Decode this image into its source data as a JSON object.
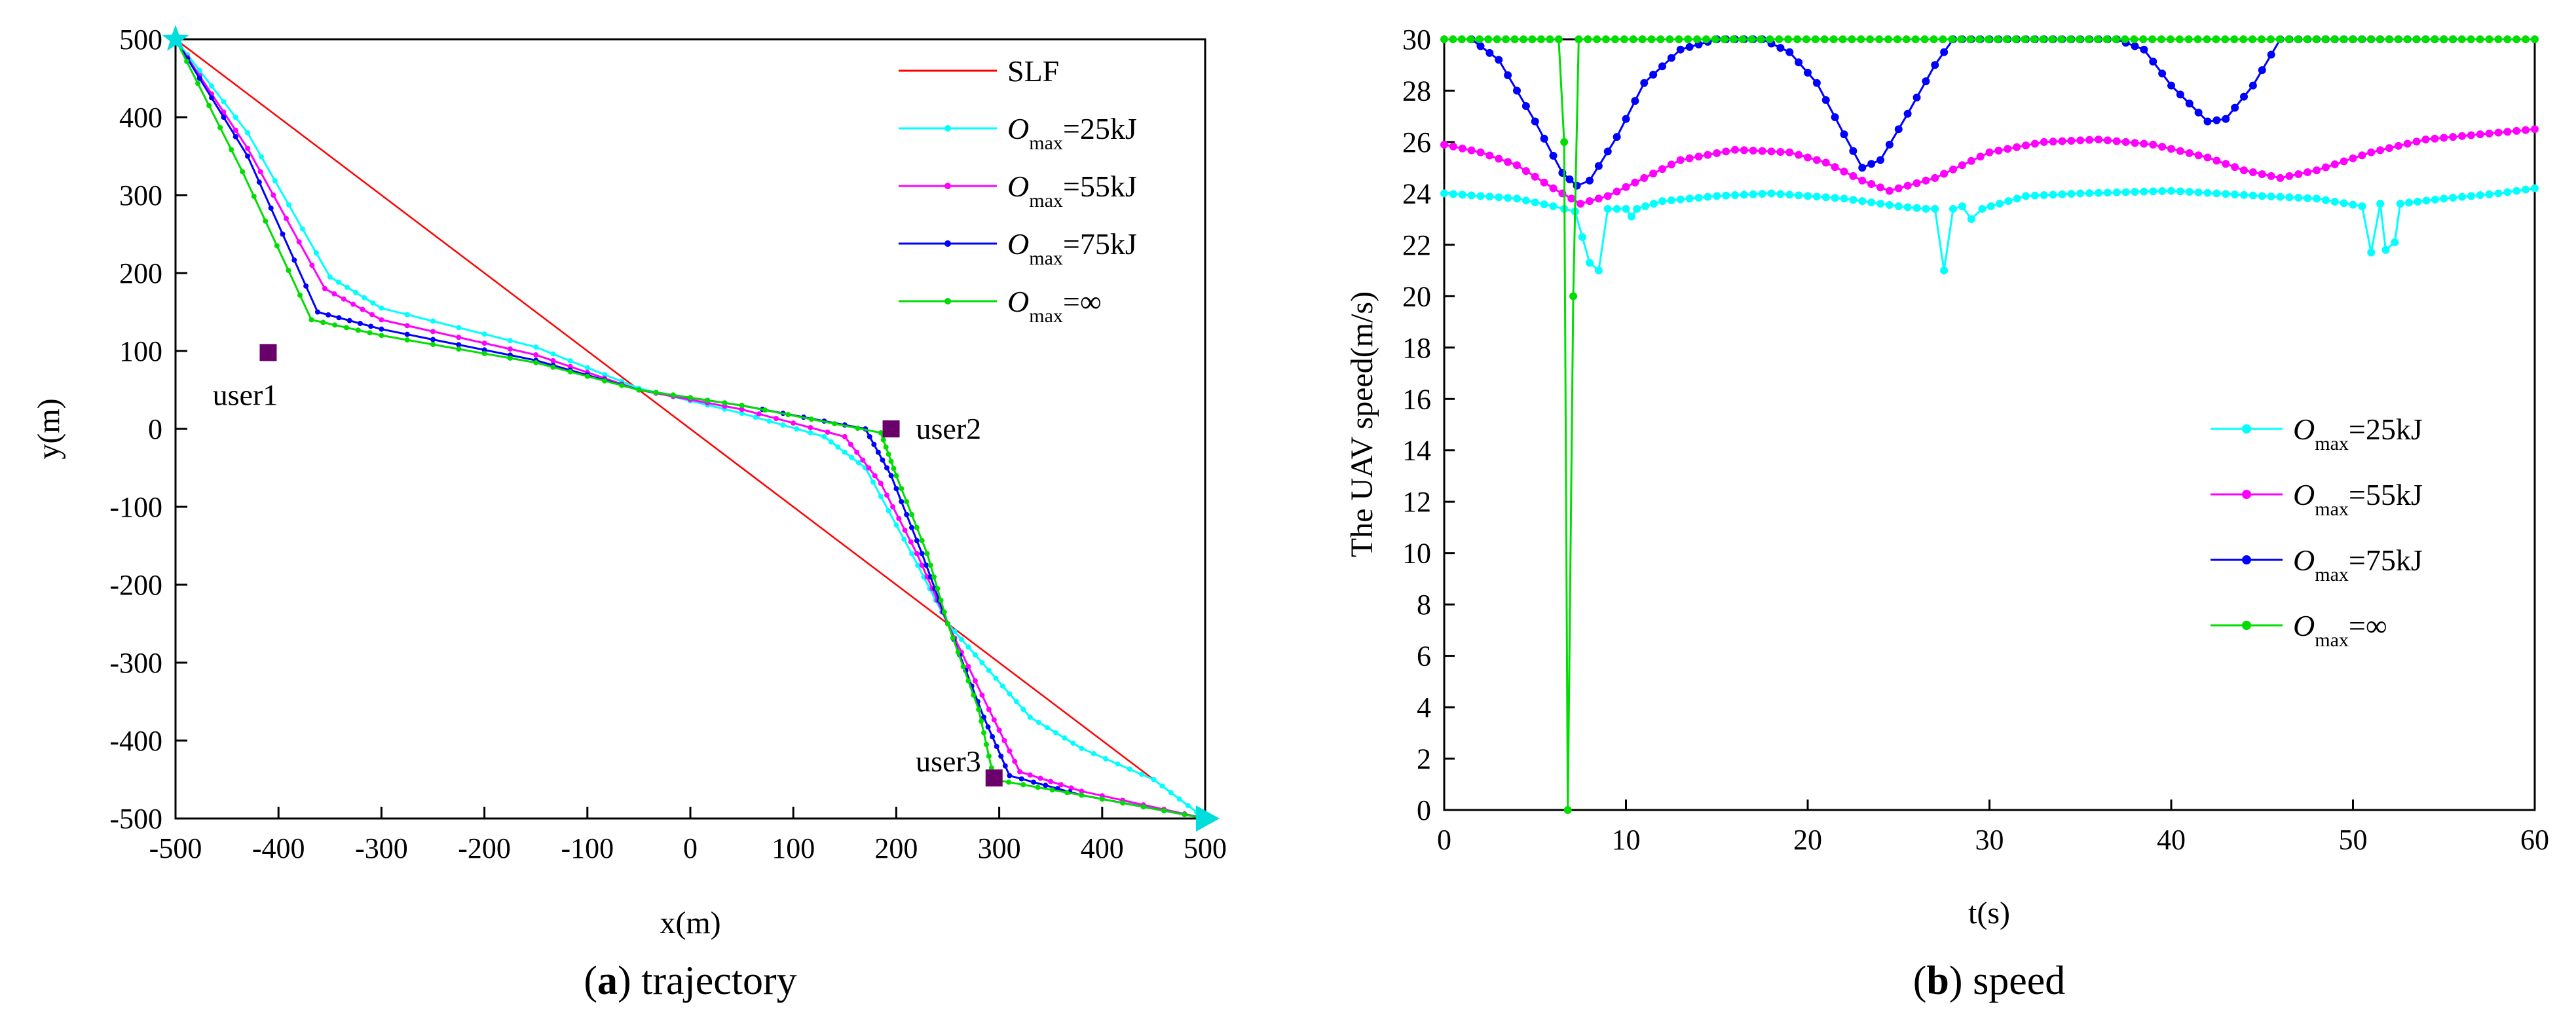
{
  "chart_data": [
    {
      "type": "line",
      "caption_letter": "a",
      "caption_text": "trajectory",
      "xlabel": "x(m)",
      "ylabel": "y(m)",
      "xlim": [
        -500,
        500
      ],
      "ylim": [
        -500,
        500
      ],
      "xticks": [
        -500,
        -400,
        -300,
        -200,
        -100,
        0,
        100,
        200,
        300,
        400,
        500
      ],
      "yticks": [
        -500,
        -400,
        -300,
        -200,
        -100,
        0,
        100,
        200,
        300,
        400,
        500
      ],
      "legend_position": "top-right",
      "series": [
        {
          "name": "SLF",
          "legend_main": "SLF",
          "legend_sub": "",
          "legend_rest": "",
          "color": "#ff0000",
          "markers": false,
          "points": [
            [
              -500,
              500
            ],
            [
              500,
              -500
            ]
          ]
        },
        {
          "name": "O_max=25kJ",
          "legend_main": "O",
          "legend_sub": "max",
          "legend_rest": "=25kJ",
          "color": "#00ffff",
          "markers": true,
          "points": [
            [
              -500,
              500
            ],
            [
              -430,
              380
            ],
            [
              -350,
              195
            ],
            [
              -300,
              155
            ],
            [
              -150,
              105
            ],
            [
              -50,
              52
            ],
            [
              50,
              20
            ],
            [
              130,
              -10
            ],
            [
              170,
              -50
            ],
            [
              215,
              -160
            ],
            [
              250,
              -250
            ],
            [
              290,
              -310
            ],
            [
              330,
              -370
            ],
            [
              380,
              -410
            ],
            [
              450,
              -450
            ],
            [
              500,
              -500
            ]
          ]
        },
        {
          "name": "O_max=55kJ",
          "legend_main": "O",
          "legend_sub": "max",
          "legend_rest": "=55kJ",
          "color": "#ff00ff",
          "markers": true,
          "points": [
            [
              -500,
              500
            ],
            [
              -430,
              360
            ],
            [
              -355,
              180
            ],
            [
              -300,
              140
            ],
            [
              -150,
              95
            ],
            [
              -50,
              50
            ],
            [
              50,
              25
            ],
            [
              150,
              -10
            ],
            [
              185,
              -70
            ],
            [
              220,
              -160
            ],
            [
              250,
              -250
            ],
            [
              290,
              -360
            ],
            [
              320,
              -440
            ],
            [
              380,
              -465
            ],
            [
              500,
              -500
            ]
          ]
        },
        {
          "name": "O_max=75kJ",
          "legend_main": "O",
          "legend_sub": "max",
          "legend_rest": "=75kJ",
          "color": "#0000ff",
          "markers": true,
          "points": [
            [
              -500,
              500
            ],
            [
              -430,
              350
            ],
            [
              -362,
              150
            ],
            [
              -300,
              128
            ],
            [
              -150,
              88
            ],
            [
              -50,
              50
            ],
            [
              50,
              30
            ],
            [
              170,
              0
            ],
            [
              195,
              -60
            ],
            [
              225,
              -160
            ],
            [
              250,
              -250
            ],
            [
              285,
              -370
            ],
            [
              310,
              -445
            ],
            [
              380,
              -470
            ],
            [
              500,
              -500
            ]
          ]
        },
        {
          "name": "O_max=∞",
          "legend_main": "O",
          "legend_sub": "max",
          "legend_rest": "=∞",
          "color": "#00dd00",
          "markers": true,
          "points": [
            [
              -500,
              500
            ],
            [
              -435,
              330
            ],
            [
              -368,
              140
            ],
            [
              -300,
              120
            ],
            [
              -150,
              85
            ],
            [
              -50,
              50
            ],
            [
              50,
              30
            ],
            [
              185,
              -5
            ],
            [
              200,
              -60
            ],
            [
              230,
              -160
            ],
            [
              250,
              -250
            ],
            [
              280,
              -360
            ],
            [
              295,
              -450
            ],
            [
              380,
              -470
            ],
            [
              500,
              -500
            ]
          ]
        }
      ],
      "users": [
        {
          "label": "user1",
          "x": -410,
          "y": 98,
          "label_pos": "below"
        },
        {
          "label": "user2",
          "x": 195,
          "y": 0,
          "label_pos": "right"
        },
        {
          "label": "user3",
          "x": 295,
          "y": -448,
          "label_pos": "left"
        }
      ],
      "endpoints": [
        {
          "name": "start-marker",
          "shape": "star",
          "x": -500,
          "y": 500
        },
        {
          "name": "end-marker",
          "shape": "triangle",
          "x": 500,
          "y": -500
        }
      ]
    },
    {
      "type": "line",
      "caption_letter": "b",
      "caption_text": "speed",
      "xlabel": "t(s)",
      "ylabel": "The UAV speed(m/s)",
      "xlim": [
        0,
        60
      ],
      "ylim": [
        0,
        30
      ],
      "xticks": [
        0,
        10,
        20,
        30,
        40,
        50,
        60
      ],
      "yticks": [
        0,
        2,
        4,
        6,
        8,
        10,
        12,
        14,
        16,
        18,
        20,
        22,
        24,
        26,
        28,
        30
      ],
      "legend_position": "middle-right",
      "series": [
        {
          "name": "O_max=25kJ",
          "legend_main": "O",
          "legend_sub": "max",
          "legend_rest": "=25kJ",
          "color": "#00ffff",
          "points": [
            [
              0,
              24.0
            ],
            [
              2,
              23.9
            ],
            [
              4,
              23.8
            ],
            [
              6,
              23.5
            ],
            [
              7.2,
              23.3
            ],
            [
              8,
              21.3
            ],
            [
              8.5,
              21.0
            ],
            [
              9,
              23.4
            ],
            [
              10,
              23.4
            ],
            [
              10.3,
              23.1
            ],
            [
              10.6,
              23.4
            ],
            [
              12,
              23.7
            ],
            [
              15,
              23.9
            ],
            [
              18,
              24.0
            ],
            [
              22,
              23.8
            ],
            [
              25,
              23.5
            ],
            [
              26.5,
              23.4
            ],
            [
              27,
              23.4
            ],
            [
              27.5,
              21.0
            ],
            [
              28,
              23.4
            ],
            [
              28.5,
              23.5
            ],
            [
              29,
              23.0
            ],
            [
              29.6,
              23.4
            ],
            [
              32,
              23.9
            ],
            [
              35,
              24.0
            ],
            [
              40,
              24.1
            ],
            [
              45,
              23.9
            ],
            [
              48,
              23.8
            ],
            [
              50.5,
              23.5
            ],
            [
              51,
              21.7
            ],
            [
              51.5,
              23.6
            ],
            [
              51.8,
              21.8
            ],
            [
              52.3,
              22.1
            ],
            [
              52.6,
              23.6
            ],
            [
              55,
              23.8
            ],
            [
              58,
              24.0
            ],
            [
              60,
              24.2
            ]
          ]
        },
        {
          "name": "O_max=55kJ",
          "legend_main": "O",
          "legend_sub": "max",
          "legend_rest": "=55kJ",
          "color": "#ff00ff",
          "points": [
            [
              0,
              25.9
            ],
            [
              2,
              25.6
            ],
            [
              4,
              25.1
            ],
            [
              6,
              24.2
            ],
            [
              7.5,
              23.6
            ],
            [
              9,
              23.9
            ],
            [
              11,
              24.6
            ],
            [
              13,
              25.3
            ],
            [
              16,
              25.7
            ],
            [
              19,
              25.6
            ],
            [
              21,
              25.2
            ],
            [
              23,
              24.5
            ],
            [
              24.5,
              24.1
            ],
            [
              27,
              24.6
            ],
            [
              30,
              25.6
            ],
            [
              33,
              26.0
            ],
            [
              36,
              26.1
            ],
            [
              39,
              25.9
            ],
            [
              42,
              25.4
            ],
            [
              44,
              24.9
            ],
            [
              46,
              24.6
            ],
            [
              48,
              24.9
            ],
            [
              51,
              25.6
            ],
            [
              54,
              26.1
            ],
            [
              57,
              26.3
            ],
            [
              60,
              26.5
            ]
          ]
        },
        {
          "name": "O_max=75kJ",
          "legend_main": "O",
          "legend_sub": "max",
          "legend_rest": "=75kJ",
          "color": "#0000ff",
          "points": [
            [
              1.5,
              30
            ],
            [
              3,
              29.2
            ],
            [
              5,
              26.8
            ],
            [
              6.5,
              24.8
            ],
            [
              7.3,
              24.3
            ],
            [
              8,
              24.5
            ],
            [
              9.5,
              26.2
            ],
            [
              11,
              28.3
            ],
            [
              13,
              29.6
            ],
            [
              15,
              30
            ],
            [
              17.5,
              30
            ],
            [
              19,
              29.5
            ],
            [
              20.5,
              28.3
            ],
            [
              22,
              26.3
            ],
            [
              23,
              25.0
            ],
            [
              24,
              25.3
            ],
            [
              25.5,
              27.1
            ],
            [
              27,
              29.0
            ],
            [
              28,
              30
            ],
            [
              37,
              30
            ],
            [
              38.5,
              29.6
            ],
            [
              40,
              28.2
            ],
            [
              42,
              26.8
            ],
            [
              43,
              26.9
            ],
            [
              44.5,
              28.2
            ],
            [
              46,
              30
            ],
            [
              55.5,
              30
            ]
          ]
        },
        {
          "name": "O_max=∞",
          "legend_main": "O",
          "legend_sub": "max",
          "legend_rest": "=∞",
          "color": "#00dd00",
          "points": [
            [
              0,
              30
            ],
            [
              6.3,
              30
            ],
            [
              6.6,
              26.0
            ],
            [
              6.8,
              0
            ],
            [
              7.1,
              20.0
            ],
            [
              7.4,
              30
            ],
            [
              60,
              30
            ]
          ]
        }
      ]
    }
  ]
}
